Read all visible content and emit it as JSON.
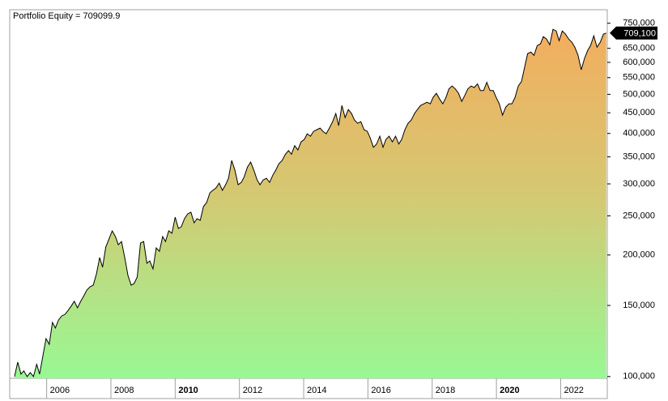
{
  "chart_data": {
    "type": "area",
    "title": "Portfolio Equity = 709099.9",
    "x": [
      2005.0,
      2005.1,
      2005.2,
      2005.29,
      2005.39,
      2005.49,
      2005.59,
      2005.69,
      2005.78,
      2005.88,
      2005.98,
      2006.08,
      2006.18,
      2006.27,
      2006.37,
      2006.47,
      2006.57,
      2006.67,
      2006.76,
      2006.86,
      2006.96,
      2007.06,
      2007.16,
      2007.25,
      2007.35,
      2007.45,
      2007.55,
      2007.65,
      2007.74,
      2007.84,
      2007.94,
      2008.04,
      2008.14,
      2008.23,
      2008.33,
      2008.43,
      2008.53,
      2008.63,
      2008.72,
      2008.82,
      2008.92,
      2009.02,
      2009.12,
      2009.21,
      2009.31,
      2009.41,
      2009.51,
      2009.61,
      2009.7,
      2009.8,
      2009.9,
      2010.0,
      2010.1,
      2010.19,
      2010.29,
      2010.39,
      2010.49,
      2010.59,
      2010.68,
      2010.78,
      2010.88,
      2010.98,
      2011.08,
      2011.17,
      2011.27,
      2011.37,
      2011.47,
      2011.57,
      2011.66,
      2011.76,
      2011.86,
      2011.96,
      2012.06,
      2012.15,
      2012.25,
      2012.35,
      2012.45,
      2012.55,
      2012.64,
      2012.74,
      2012.84,
      2012.94,
      2013.04,
      2013.13,
      2013.23,
      2013.33,
      2013.43,
      2013.53,
      2013.62,
      2013.72,
      2013.82,
      2013.92,
      2014.02,
      2014.11,
      2014.21,
      2014.31,
      2014.41,
      2014.51,
      2014.6,
      2014.7,
      2014.8,
      2014.9,
      2015.0,
      2015.09,
      2015.19,
      2015.29,
      2015.39,
      2015.49,
      2015.58,
      2015.68,
      2015.78,
      2015.88,
      2015.98,
      2016.07,
      2016.17,
      2016.27,
      2016.37,
      2016.47,
      2016.56,
      2016.66,
      2016.76,
      2016.86,
      2016.96,
      2017.05,
      2017.15,
      2017.25,
      2017.35,
      2017.45,
      2017.54,
      2017.64,
      2017.74,
      2017.84,
      2017.94,
      2018.03,
      2018.13,
      2018.23,
      2018.33,
      2018.43,
      2018.52,
      2018.62,
      2018.72,
      2018.82,
      2018.92,
      2019.01,
      2019.11,
      2019.21,
      2019.31,
      2019.41,
      2019.5,
      2019.6,
      2019.7,
      2019.8,
      2019.9,
      2019.99,
      2020.09,
      2020.19,
      2020.29,
      2020.39,
      2020.48,
      2020.58,
      2020.68,
      2020.78,
      2020.88,
      2020.97,
      2021.07,
      2021.17,
      2021.27,
      2021.37,
      2021.46,
      2021.56,
      2021.66,
      2021.76,
      2021.86,
      2021.95,
      2022.05,
      2022.15,
      2022.25,
      2022.35,
      2022.44,
      2022.54,
      2022.64,
      2022.74,
      2022.84,
      2022.93,
      2023.03,
      2023.13,
      2023.23,
      2023.33,
      2023.42
    ],
    "series": [
      {
        "name": "Portfolio Equity",
        "color": "#000000",
        "values": [
          100000,
          108600,
          101400,
          103300,
          100000,
          102300,
          100000,
          107200,
          101400,
          112200,
          124200,
          120200,
          136200,
          131900,
          138100,
          141300,
          142600,
          145900,
          149300,
          153600,
          148000,
          153600,
          158600,
          163800,
          166800,
          168400,
          179700,
          197100,
          186500,
          209200,
          219100,
          229500,
          222200,
          212100,
          216000,
          197100,
          178100,
          168400,
          169900,
          176500,
          214100,
          216000,
          190800,
          193400,
          184800,
          208300,
          204300,
          222200,
          216000,
          229500,
          226400,
          248200,
          232700,
          234900,
          246000,
          252900,
          255200,
          240300,
          246000,
          243700,
          263600,
          269800,
          285000,
          289100,
          293100,
          301400,
          289100,
          298600,
          309700,
          342900,
          324300,
          298600,
          302700,
          312500,
          330300,
          339800,
          324300,
          306900,
          298600,
          306900,
          309700,
          302700,
          315400,
          324300,
          336700,
          342900,
          355300,
          362700,
          355300,
          373100,
          364100,
          381300,
          386600,
          399300,
          393800,
          404900,
          408600,
          412400,
          404900,
          399300,
          412400,
          427800,
          448100,
          418200,
          469300,
          437900,
          458600,
          448100,
          431900,
          423900,
          427800,
          408600,
          404900,
          390100,
          369700,
          376600,
          393800,
          369700,
          386600,
          393800,
          381300,
          393800,
          376600,
          386600,
          408600,
          423900,
          431900,
          448100,
          458600,
          469300,
          473600,
          478000,
          473600,
          491400,
          503000,
          486900,
          473600,
          491400,
          515600,
          524300,
          515600,
          503000,
          480300,
          496000,
          515600,
          524300,
          519900,
          530700,
          510800,
          510800,
          535500,
          510800,
          510800,
          491400,
          473600,
          443800,
          465000,
          473600,
          473600,
          491400,
          524300,
          538000,
          584800,
          630400,
          636200,
          624600,
          660300,
          666400,
          694800,
          685200,
          663400,
          724300,
          717600,
          679000,
          717600,
          704600,
          685200,
          672500,
          654300,
          624600,
          575100,
          613200,
          642100,
          660300,
          698000,
          654300,
          672500,
          704600,
          709099.9
        ]
      }
    ],
    "current_value_label": "709,100",
    "fill_gradient": [
      "#f6aa5c",
      "#d5c872",
      "#98f894"
    ],
    "log_y": true,
    "xlim": [
      2004.85,
      2023.45
    ],
    "xticks": [
      2006,
      2008,
      2010,
      2012,
      2014,
      2016,
      2018,
      2020,
      2022
    ],
    "ylim": [
      99000,
      810000
    ],
    "yticks": [
      {
        "value": 100000,
        "label": "100,000"
      },
      {
        "value": 150000,
        "label": "150,000"
      },
      {
        "value": 200000,
        "label": "200,000"
      },
      {
        "value": 250000,
        "label": "250,000"
      },
      {
        "value": 300000,
        "label": "300,000"
      },
      {
        "value": 350000,
        "label": "350,000"
      },
      {
        "value": 400000,
        "label": "400,000"
      },
      {
        "value": 450000,
        "label": "450,000"
      },
      {
        "value": 500000,
        "label": "500,000"
      },
      {
        "value": 550000,
        "label": "550,000"
      },
      {
        "value": 600000,
        "label": "600,000"
      },
      {
        "value": 650000,
        "label": "650,000"
      },
      {
        "value": 750000,
        "label": "750,000"
      }
    ]
  }
}
